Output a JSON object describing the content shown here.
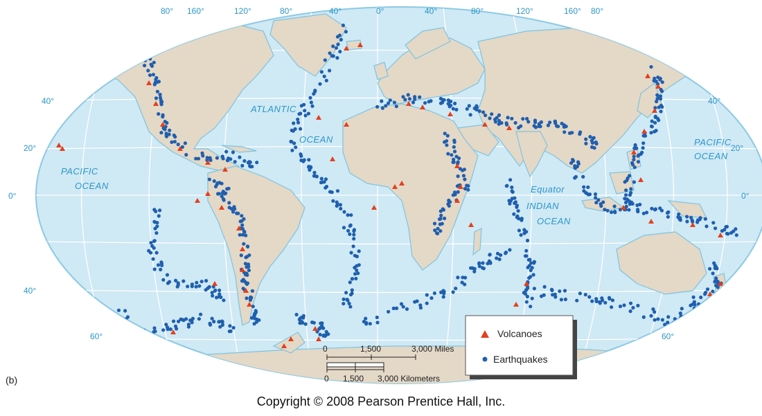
{
  "panel_label": "(b)",
  "copyright": "Copyright © 2008 Pearson Prentice Hall, Inc.",
  "colors": {
    "ocean": "#cfe9f5",
    "land": "#e4d8c7",
    "coast": "#7cc4e0",
    "graticule": "#ffffff",
    "volcano": "#e2401c",
    "earthquake": "#1f5fae",
    "label": "#2b97c9"
  },
  "labels": {
    "atlantic": [
      "ATLANTIC",
      "OCEAN"
    ],
    "pacific_west": [
      "PACIFIC",
      "OCEAN"
    ],
    "pacific_east": [
      "PACIFIC",
      "OCEAN"
    ],
    "indian": [
      "INDIAN",
      "OCEAN"
    ],
    "equator": "Equator"
  },
  "graticule_labels": {
    "top_longitudes": [
      "80°",
      "160°",
      "120°",
      "80°",
      "40°",
      "0°",
      "40°",
      "80°",
      "120°",
      "160°",
      "80°"
    ],
    "left_latitudes": [
      "40°",
      "20°",
      "0°",
      "40°",
      "60°"
    ],
    "right_latitudes": [
      "40°",
      "20°",
      "0°",
      "60°"
    ]
  },
  "scale": {
    "miles_ticks": [
      "0",
      "1,500",
      "3,000 Miles"
    ],
    "km_ticks": [
      "0",
      "1,500",
      "3,000 Kilometers"
    ]
  },
  "legend": {
    "volcanoes": "Volcanoes",
    "earthquakes": "Earthquakes"
  }
}
